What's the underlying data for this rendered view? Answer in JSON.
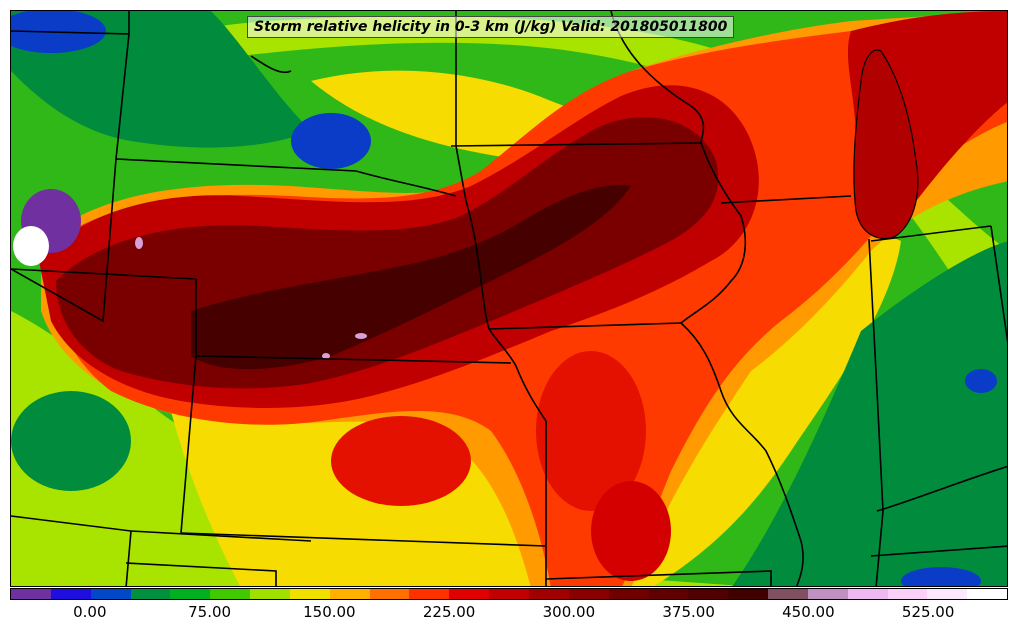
{
  "title": "Storm relative helicity in 0-3 km (J/kg) Valid: 201805011800",
  "colorbar": {
    "min": -50,
    "max": 575,
    "step": 25,
    "colors": [
      "#7030a0",
      "#1e0fe0",
      "#0048c8",
      "#009040",
      "#00b020",
      "#40c800",
      "#a0e000",
      "#f0e000",
      "#ffb000",
      "#ff7000",
      "#ff3000",
      "#e00000",
      "#c00000",
      "#a00000",
      "#880000",
      "#700000",
      "#600000",
      "#500000",
      "#400000",
      "#805060",
      "#c090c0",
      "#f0b8f0",
      "#f8d0f8",
      "#fce8fc",
      "#ffffff"
    ],
    "tick_labels": [
      "0.00",
      "75.00",
      "150.00",
      "225.00",
      "300.00",
      "375.00",
      "450.00",
      "525.00"
    ],
    "tick_values": [
      0,
      75,
      150,
      225,
      300,
      375,
      450,
      525
    ]
  },
  "palette": {
    "background": "#30b818",
    "green_dark": "#008c3c",
    "green": "#34c00c",
    "lime": "#a8e400",
    "yellow": "#f6dc00",
    "orange": "#ff9a00",
    "red_orange": "#ff3a00",
    "red": "#d40000",
    "dark_red": "#960000",
    "darkest_red": "#560000",
    "blue": "#0a3cc8",
    "purple": "#7030a0",
    "pink": "#d8a0d8",
    "white": "#ffffff",
    "borders": "#000000"
  }
}
